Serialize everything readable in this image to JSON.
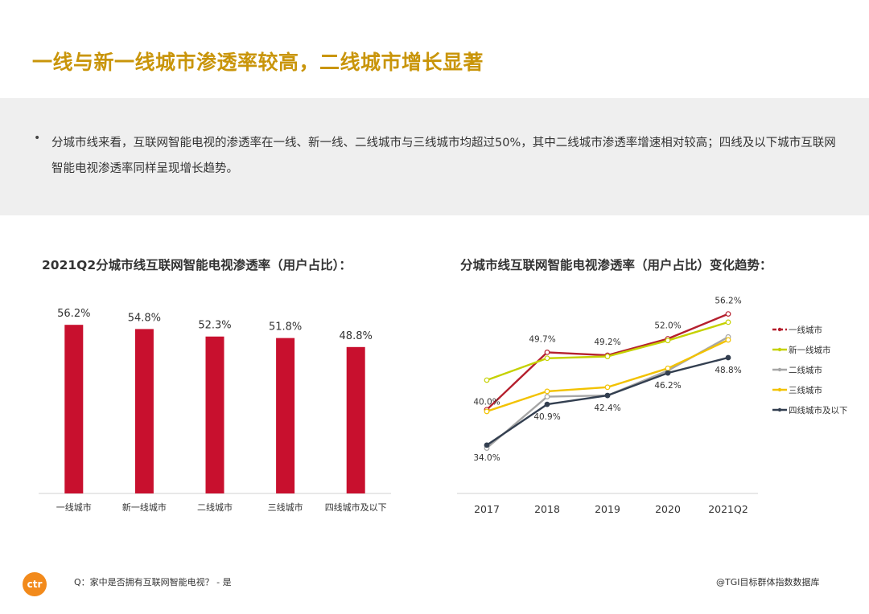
{
  "title": "一线与新一线城市渗透率较高，二线城市增长显著",
  "summary": "分城市线来看，互联网智能电视的渗透率在一线、新一线、二线城市与三线城市均超过50%，其中二线城市渗透率增速相对较高；四线及以下城市互联网智能电视渗透率同样呈现增长趋势。",
  "footer": {
    "question": "Q：家中是否拥有互联网智能电视？ - 是",
    "source": "@TGI目标群体指数数据库",
    "logo_text": "ctr"
  },
  "chart_data": [
    {
      "type": "bar",
      "title": "2021Q2分城市线互联网智能电视渗透率（用户占比）：",
      "categories": [
        "一线城市",
        "新一线城市",
        "二线城市",
        "三线城市",
        "四线城市及以下"
      ],
      "values": [
        56.2,
        54.8,
        52.3,
        51.8,
        48.8
      ],
      "labels": [
        "56.2%",
        "54.8%",
        "52.3%",
        "51.8%",
        "48.8%"
      ],
      "ylim": [
        0,
        60
      ],
      "color": "#c8102e",
      "grid": false
    },
    {
      "type": "line",
      "title": "分城市线互联网智能电视渗透率（用户占比）变化趋势：",
      "x": [
        "2017",
        "2018",
        "2019",
        "2020",
        "2021Q2"
      ],
      "ylim": [
        28,
        59
      ],
      "legend_position": "right",
      "grid": false,
      "series": [
        {
          "name": "一线城市",
          "color": "#b5202e",
          "values": [
            40.0,
            49.7,
            49.2,
            52.0,
            56.2
          ],
          "labels": [
            "40.0%",
            "49.7%",
            "49.2%",
            "52.0%",
            "56.2%"
          ]
        },
        {
          "name": "新一线城市",
          "color": "#c5d100",
          "values": [
            45.0,
            48.7,
            49.0,
            51.7,
            54.8
          ],
          "labels": []
        },
        {
          "name": "二线城市",
          "color": "#a6a6a6",
          "values": [
            33.5,
            42.2,
            42.4,
            46.6,
            52.3
          ],
          "labels": []
        },
        {
          "name": "三线城市",
          "color": "#f2c200",
          "values": [
            39.7,
            43.1,
            43.8,
            47.0,
            51.8
          ],
          "labels": []
        },
        {
          "name": "四线城市及以下",
          "color": "#333f50",
          "values": [
            34.0,
            40.9,
            42.4,
            46.2,
            48.8
          ],
          "labels": [
            "34.0%",
            "40.9%",
            "42.4%",
            "46.2%",
            "48.8%"
          ]
        }
      ]
    }
  ]
}
